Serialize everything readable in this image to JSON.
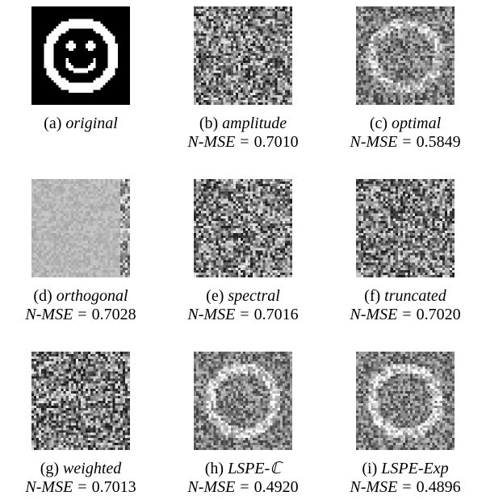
{
  "panels": [
    {
      "label": "(a)",
      "name": "original",
      "metric_name": "",
      "metric_value": "",
      "kind": "original"
    },
    {
      "label": "(b)",
      "name": "amplitude",
      "metric_name": "N-MSE",
      "metric_value": "0.7010",
      "kind": "noise",
      "contrast": 0.85,
      "brightness": 0.0,
      "ring": 0.0,
      "seed": 11
    },
    {
      "label": "(c)",
      "name": "optimal",
      "metric_name": "N-MSE",
      "metric_value": "0.5849",
      "kind": "noise",
      "contrast": 0.6,
      "brightness": 0.0,
      "ring": 0.35,
      "seed": 23
    },
    {
      "label": "(d)",
      "name": "orthogonal",
      "metric_name": "N-MSE",
      "metric_value": "0.7028",
      "kind": "flat",
      "contrast": 0.15,
      "brightness": 0.55,
      "ring": 0.0,
      "seed": 37
    },
    {
      "label": "(e)",
      "name": "spectral",
      "metric_name": "N-MSE",
      "metric_value": "0.7016",
      "kind": "noise",
      "contrast": 0.85,
      "brightness": 0.0,
      "ring": 0.0,
      "seed": 41
    },
    {
      "label": "(f)",
      "name": "truncated",
      "metric_name": "N-MSE",
      "metric_value": "0.7020",
      "kind": "noise",
      "contrast": 0.85,
      "brightness": 0.0,
      "ring": 0.0,
      "seed": 53
    },
    {
      "label": "(g)",
      "name": "weighted",
      "metric_name": "N-MSE",
      "metric_value": "0.7013",
      "kind": "noise",
      "contrast": 0.85,
      "brightness": 0.0,
      "ring": 0.0,
      "seed": 67
    },
    {
      "label": "(h)",
      "name": "LSPE-ℂ",
      "metric_name": "N-MSE",
      "metric_value": "0.4920",
      "kind": "noise",
      "contrast": 0.55,
      "brightness": 0.0,
      "ring": 0.45,
      "seed": 79
    },
    {
      "label": "(i)",
      "name": "LSPE-Exp",
      "metric_name": "N-MSE",
      "metric_value": "0.4896",
      "kind": "noise",
      "contrast": 0.55,
      "brightness": 0.0,
      "ring": 0.45,
      "seed": 89
    }
  ],
  "equals_sign": "="
}
